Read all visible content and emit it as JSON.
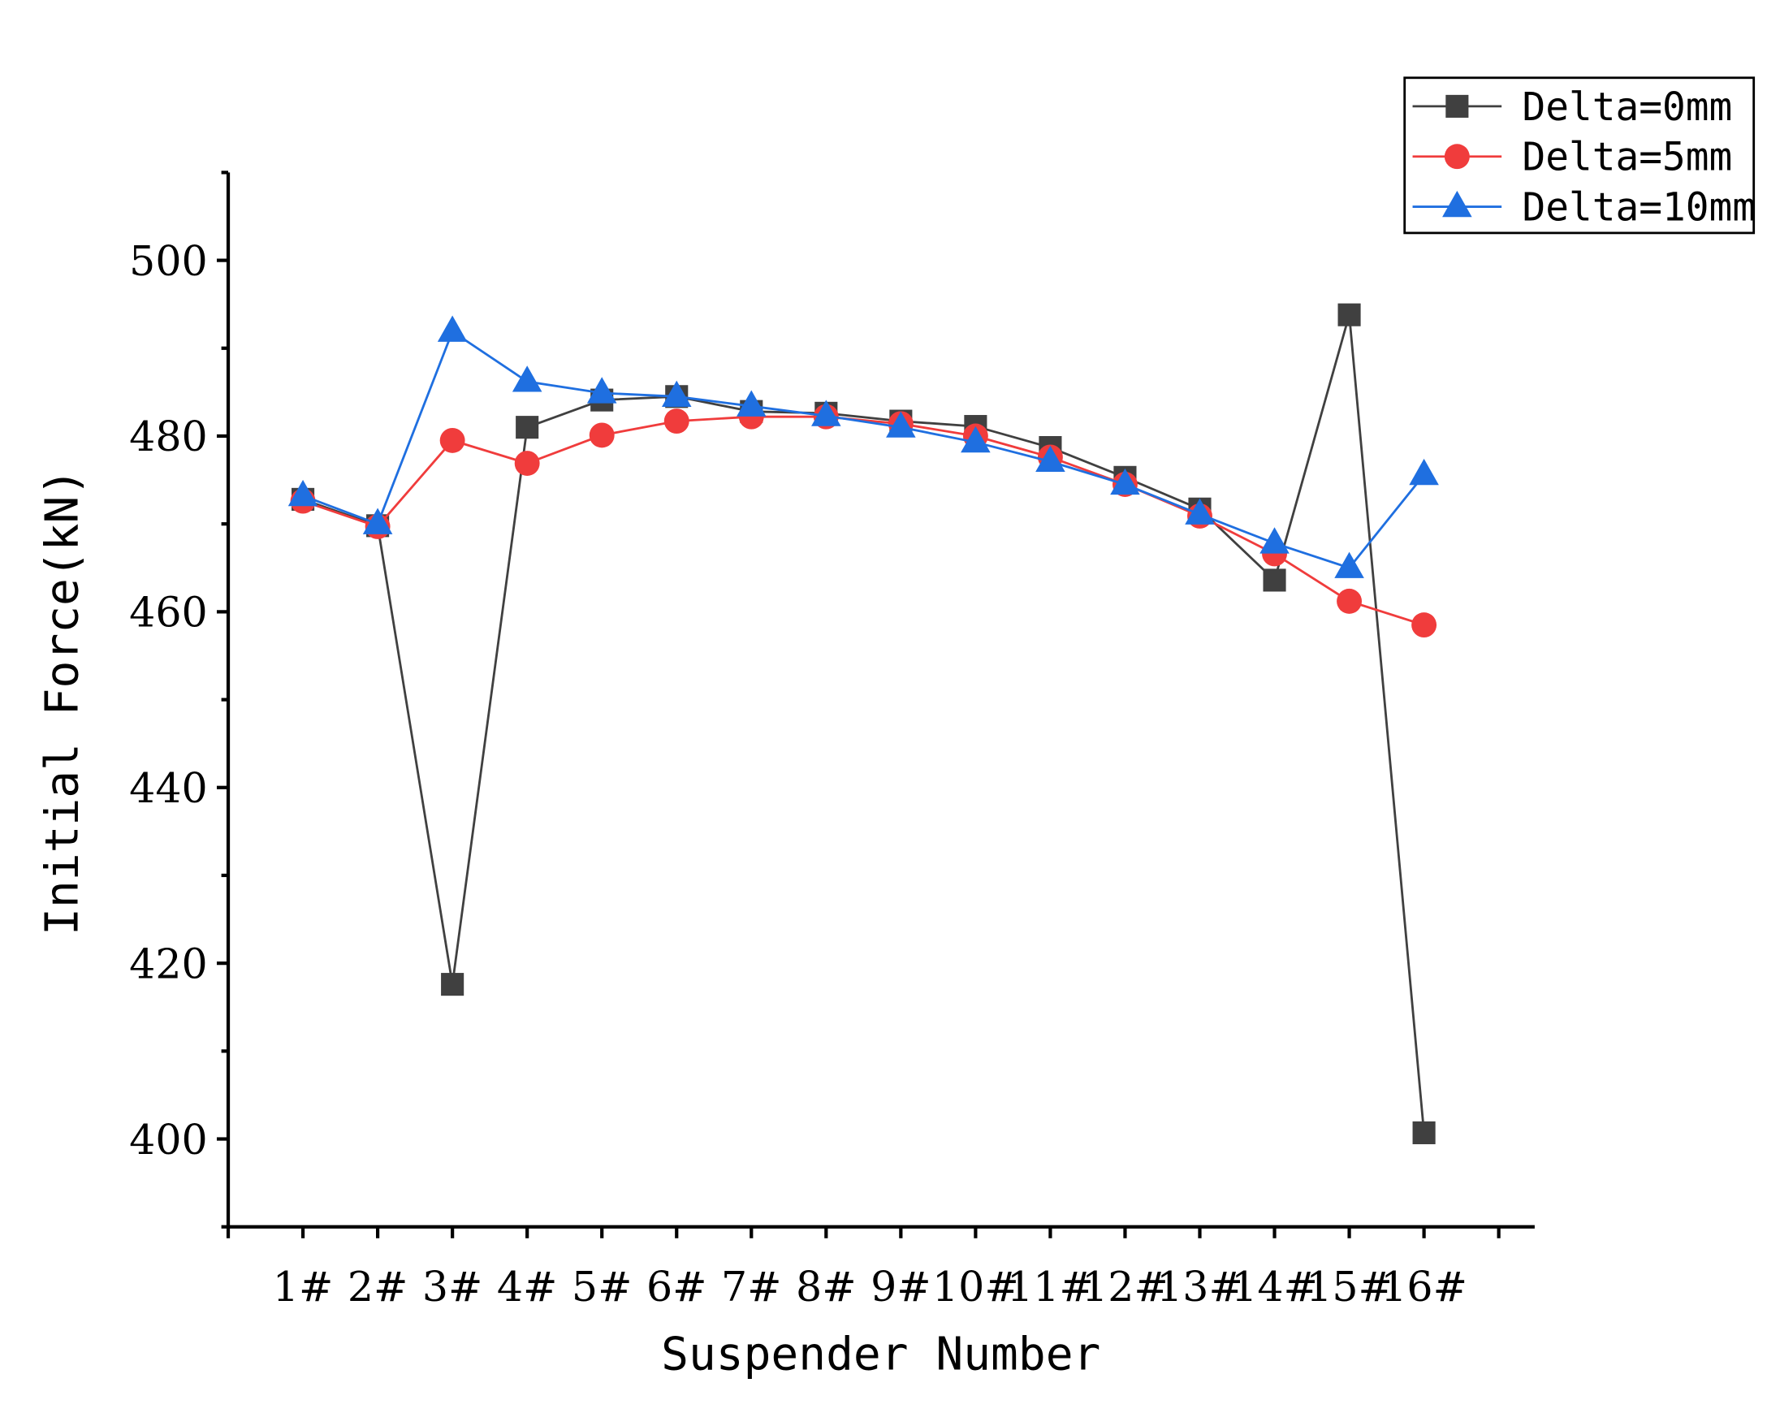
{
  "chart_data": {
    "type": "line",
    "title": "",
    "xlabel": "Suspender Number",
    "ylabel": "Initial Force(kN)",
    "categories": [
      "1#",
      "2#",
      "3#",
      "4#",
      "5#",
      "6#",
      "7#",
      "8#",
      "9#",
      "10#",
      "11#",
      "12#",
      "13#",
      "14#",
      "15#",
      "16#"
    ],
    "ylim": [
      390,
      510
    ],
    "yticks": [
      400,
      420,
      440,
      460,
      480,
      500
    ],
    "grid": false,
    "legend_position": "top-right",
    "series": [
      {
        "name": "Delta=0mm",
        "color": "#404040",
        "marker": "square",
        "values": [
          472.8,
          469.8,
          417.6,
          481.0,
          484.1,
          484.5,
          482.8,
          482.6,
          481.7,
          481.1,
          478.7,
          475.3,
          471.7,
          463.6,
          493.8,
          400.7
        ]
      },
      {
        "name": "Delta=5mm",
        "color": "#f03c3c",
        "marker": "circle",
        "values": [
          472.6,
          469.7,
          479.5,
          476.9,
          480.1,
          481.7,
          482.2,
          482.2,
          481.4,
          480.0,
          477.6,
          474.5,
          470.9,
          466.6,
          461.2,
          458.5
        ]
      },
      {
        "name": "Delta=10mm",
        "color": "#1f6fe0",
        "marker": "triangle",
        "values": [
          473.2,
          470.0,
          491.9,
          486.2,
          484.9,
          484.5,
          483.4,
          482.3,
          481.0,
          479.3,
          477.1,
          474.5,
          471.1,
          467.8,
          465.0,
          475.6
        ]
      }
    ]
  }
}
